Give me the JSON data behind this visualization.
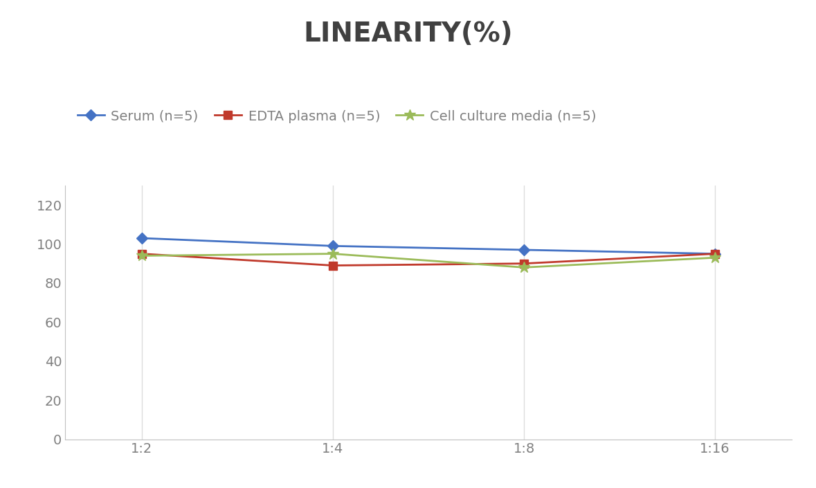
{
  "title": "LINEARITY(%)",
  "title_fontsize": 28,
  "title_fontweight": "bold",
  "title_color": "#404040",
  "x_labels": [
    "1:2",
    "1:4",
    "1:8",
    "1:16"
  ],
  "x_positions": [
    0,
    1,
    2,
    3
  ],
  "series": [
    {
      "label": "Serum (n=5)",
      "values": [
        103,
        99,
        97,
        95
      ],
      "color": "#4472C4",
      "marker": "D",
      "markersize": 8,
      "linewidth": 2.0
    },
    {
      "label": "EDTA plasma (n=5)",
      "values": [
        95,
        89,
        90,
        95
      ],
      "color": "#C0392B",
      "marker": "s",
      "markersize": 8,
      "linewidth": 2.0
    },
    {
      "label": "Cell culture media (n=5)",
      "values": [
        94,
        95,
        88,
        93
      ],
      "color": "#9BBB59",
      "marker": "*",
      "markersize": 12,
      "linewidth": 2.0
    }
  ],
  "ylim": [
    0,
    130
  ],
  "yticks": [
    0,
    20,
    40,
    60,
    80,
    100,
    120
  ],
  "grid_color": "#DDDDDD",
  "background_color": "#FFFFFF",
  "legend_fontsize": 14,
  "tick_fontsize": 14,
  "tick_color": "#808080",
  "spine_color": "#C0C0C0"
}
